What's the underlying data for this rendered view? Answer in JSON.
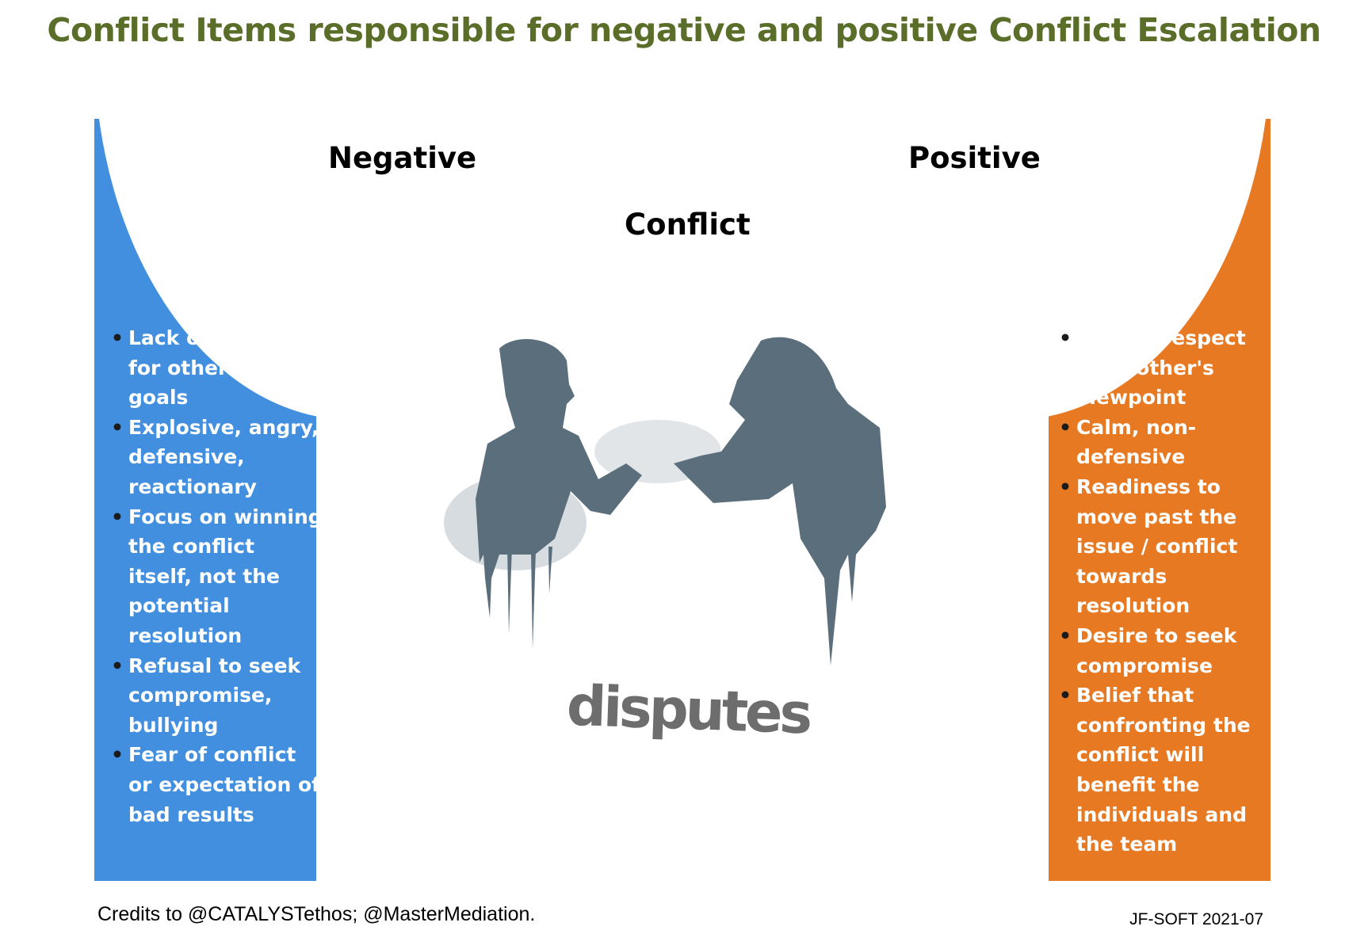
{
  "title": "Conflict  Items responsible for negative and positive Conflict Escalation",
  "labels": {
    "negative": "Negative",
    "positive": "Positive",
    "center": "Conflict"
  },
  "image_caption": "disputes",
  "negative_items": [
    "Lack of respect for other party's goals",
    "Explosive, angry, defensive, reactionary",
    "Focus on winning the conflict itself, not the potential resolution",
    "Refusal to seek compromise, bullying",
    "Fear of conflict or  expectation of bad results"
  ],
  "positive_items": [
    "Parties respect each other's viewpoint",
    "Calm, non-defensive",
    "Readiness to move past the issue / conflict towards resolution",
    "Desire to seek compromise",
    "Belief that confronting the conflict will benefit the individuals and the team"
  ],
  "colors": {
    "title": "#5a6e2a",
    "negative_panel": "#428fdf",
    "positive_panel": "#e77922",
    "silhouette": "#5b6e7c"
  },
  "footer": {
    "credits": "Credits to @CATALYSTethos; @MasterMediation.",
    "signature": "JF-SOFT 2021-07"
  }
}
